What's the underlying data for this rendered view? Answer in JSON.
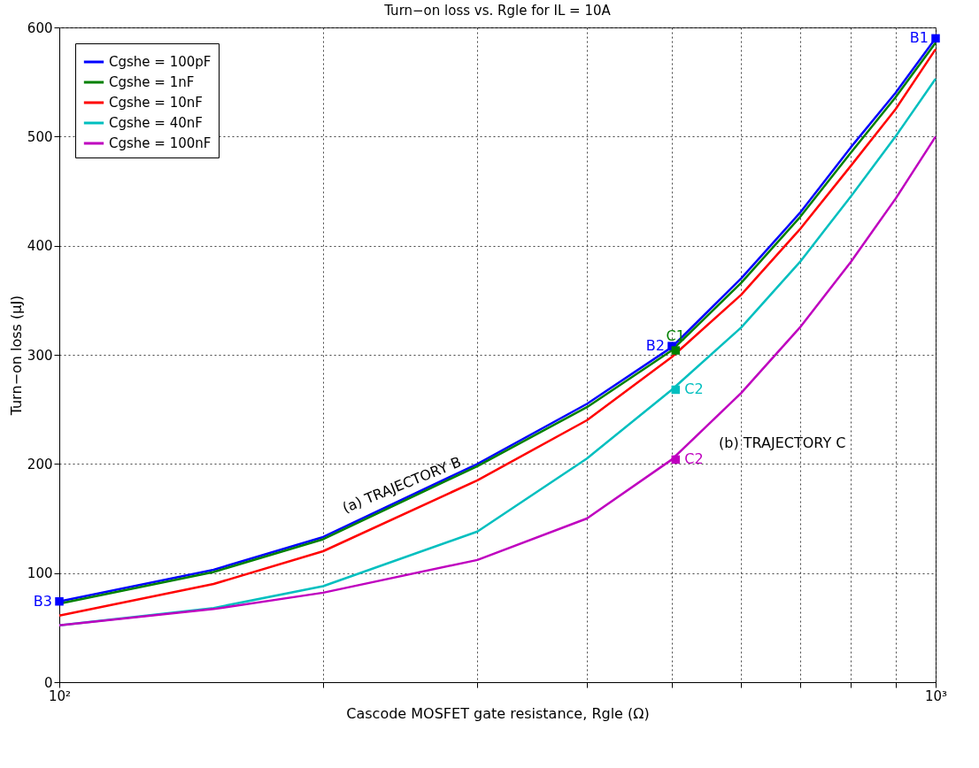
{
  "chart_data": {
    "type": "line",
    "title": "Turn−on loss vs. Rgle for IL = 10A",
    "xlabel": "Cascode MOSFET gate resistance, Rgle (Ω)",
    "ylabel": "Turn−on loss (μJ)",
    "log": "x",
    "xlim": [
      100,
      1000
    ],
    "ylim": [
      0,
      600
    ],
    "xticks": [
      {
        "value": 100,
        "label": "10²"
      },
      {
        "value": 200,
        "label": null
      },
      {
        "value": 300,
        "label": null
      },
      {
        "value": 400,
        "label": null
      },
      {
        "value": 500,
        "label": null
      },
      {
        "value": 600,
        "label": null
      },
      {
        "value": 700,
        "label": null
      },
      {
        "value": 800,
        "label": null
      },
      {
        "value": 900,
        "label": null
      },
      {
        "value": 1000,
        "label": "10³"
      }
    ],
    "yticks": [
      0,
      100,
      200,
      300,
      400,
      500,
      600
    ],
    "grid": true,
    "legend": "top left",
    "line_style": "solid",
    "x": [
      100,
      150,
      200,
      300,
      400,
      500,
      600,
      700,
      800,
      900,
      1000
    ],
    "series": [
      {
        "name": "Cgshe = 100pF",
        "color": "#0000ff",
        "values": [
          74,
          103,
          133,
          200,
          255,
          307,
          370,
          430,
          490,
          540,
          590
        ]
      },
      {
        "name": "Cgshe = 1nF",
        "color": "#008000",
        "values": [
          72,
          101,
          131,
          198,
          252,
          304,
          366,
          426,
          485,
          536,
          586
        ]
      },
      {
        "name": "Cgshe = 10nF",
        "color": "#ff0000",
        "values": [
          61,
          90,
          120,
          185,
          240,
          298,
          355,
          415,
          473,
          525,
          580
        ]
      },
      {
        "name": "Cgshe = 40nF",
        "color": "#00bfbf",
        "values": [
          52,
          68,
          88,
          138,
          205,
          268,
          325,
          385,
          445,
          500,
          553
        ]
      },
      {
        "name": "Cgshe = 100nF",
        "color": "#bf00bf",
        "values": [
          52,
          67,
          82,
          112,
          150,
          204,
          265,
          325,
          385,
          443,
          500
        ]
      },
      {
        "type": "scatter",
        "marker": "square",
        "color": "#0000ff",
        "x": [
          1000,
          500,
          100
        ],
        "values": [
          590,
          308,
          74
        ]
      },
      {
        "type": "scatter",
        "marker": "square",
        "color": "#008000",
        "x": [
          505
        ],
        "values": [
          304
        ]
      },
      {
        "type": "scatter",
        "marker": "square",
        "color": "#00bfbf",
        "x": [
          505
        ],
        "values": [
          268
        ]
      },
      {
        "type": "scatter",
        "marker": "square",
        "color": "#bf00bf",
        "x": [
          505
        ],
        "values": [
          204
        ]
      }
    ],
    "annotations": [
      {
        "text": "B1",
        "x": 1000,
        "y": 590
      },
      {
        "text": "B2",
        "x": 500,
        "y": 308
      },
      {
        "text": "B3",
        "x": 100,
        "y": 74
      },
      {
        "text": "C1",
        "x": 505,
        "y": 304
      },
      {
        "text": "C2",
        "x": 505,
        "y": 268
      },
      {
        "text": "C2",
        "x": 505,
        "y": 204
      },
      {
        "text": "(a) TRAJECTORY B",
        "x": 249,
        "y": 170
      },
      "(b) TRAJECTORY C"
    ]
  }
}
